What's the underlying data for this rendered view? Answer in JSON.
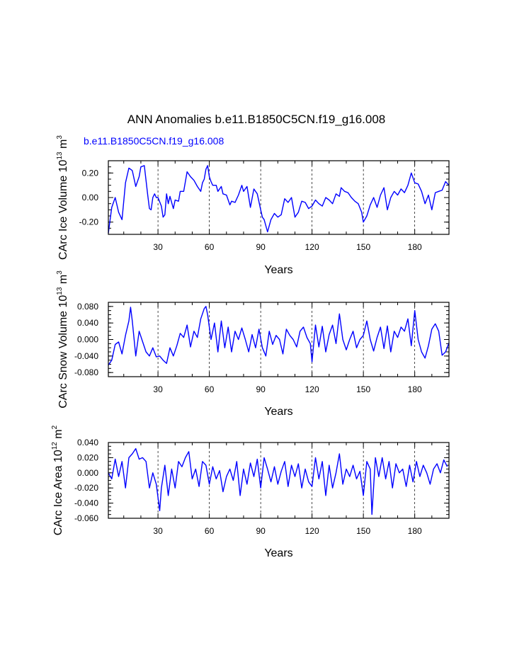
{
  "figure": {
    "title": "ANN Anomalies b.e11.B1850C5CN.f19_g16.008",
    "subtitle": "b.e11.B1850C5CN.f19_g16.008",
    "line_color": "#0000ff"
  },
  "chart_data": [
    {
      "type": "line",
      "xlabel": "Years",
      "ylabel_main": "CArc Ice Volume 10",
      "ylabel_exp": "13",
      "ylabel_unit": " m",
      "ylabel_unit_exp": "3",
      "xlim": [
        1,
        200
      ],
      "ylim": [
        -0.3,
        0.3
      ],
      "xticks": [
        30,
        60,
        90,
        120,
        150,
        180
      ],
      "xtick_labels": [
        "30",
        "60",
        "90",
        "120",
        "150",
        "180"
      ],
      "yticks": [
        -0.2,
        0.0,
        0.2
      ],
      "ytick_labels": [
        "-0.20",
        "0.00",
        "0.20"
      ],
      "vlines": [
        30,
        60,
        90,
        120,
        150,
        180
      ],
      "series": [
        {
          "name": "CArc Ice Volume",
          "x": [
            1,
            3,
            5,
            7,
            9,
            11,
            13,
            14,
            15,
            17,
            19,
            20,
            22,
            23,
            24,
            25,
            26,
            27,
            28,
            29,
            30,
            32,
            33,
            34,
            35,
            36,
            37,
            39,
            40,
            42,
            43,
            45,
            47,
            49,
            51,
            53,
            55,
            56,
            57,
            58,
            59,
            60,
            61,
            62,
            64,
            65,
            67,
            68,
            70,
            72,
            73,
            75,
            77,
            79,
            80,
            82,
            84,
            86,
            88,
            90,
            91,
            92,
            94,
            96,
            98,
            100,
            102,
            104,
            106,
            108,
            110,
            112,
            114,
            116,
            118,
            120,
            122,
            124,
            126,
            128,
            130,
            132,
            134,
            136,
            137,
            139,
            141,
            143,
            145,
            147,
            149,
            150,
            152,
            154,
            156,
            158,
            160,
            162,
            164,
            166,
            168,
            170,
            172,
            174,
            176,
            178,
            180,
            182,
            184,
            186,
            188,
            190,
            192,
            194,
            196,
            198,
            200
          ],
          "values": [
            -0.29,
            -0.08,
            0.0,
            -0.12,
            -0.18,
            0.12,
            0.24,
            0.23,
            0.22,
            0.09,
            0.17,
            0.25,
            0.26,
            0.14,
            0.02,
            -0.09,
            -0.1,
            0.0,
            0.03,
            0.0,
            0.0,
            -0.07,
            -0.16,
            -0.14,
            0.03,
            -0.05,
            0.01,
            -0.09,
            -0.02,
            -0.03,
            0.05,
            0.05,
            0.21,
            0.17,
            0.14,
            0.09,
            0.05,
            0.12,
            0.15,
            0.23,
            0.26,
            0.17,
            0.13,
            0.1,
            0.1,
            0.05,
            0.09,
            0.03,
            0.02,
            -0.06,
            -0.03,
            -0.04,
            0.02,
            0.1,
            0.05,
            0.09,
            -0.08,
            0.07,
            0.03,
            -0.1,
            -0.16,
            -0.18,
            -0.28,
            -0.18,
            -0.13,
            -0.16,
            -0.14,
            -0.01,
            -0.04,
            0.0,
            -0.16,
            -0.12,
            -0.03,
            -0.04,
            -0.09,
            -0.07,
            -0.02,
            -0.05,
            -0.07,
            0.0,
            -0.02,
            -0.05,
            0.03,
            0.01,
            0.08,
            0.05,
            0.04,
            0.0,
            -0.03,
            -0.05,
            -0.12,
            -0.2,
            -0.15,
            -0.06,
            0.0,
            -0.08,
            0.02,
            0.08,
            -0.1,
            0.0,
            0.05,
            0.02,
            0.07,
            0.04,
            0.1,
            0.2,
            0.12,
            0.11,
            0.05,
            -0.05,
            0.02,
            -0.1,
            0.04,
            0.05,
            0.06,
            0.13,
            0.1
          ]
        }
      ]
    },
    {
      "type": "line",
      "xlabel": "Years",
      "ylabel_main": "CArc Snow Volume 10",
      "ylabel_exp": "13",
      "ylabel_unit": " m",
      "ylabel_unit_exp": "3",
      "xlim": [
        1,
        200
      ],
      "ylim": [
        -0.09,
        0.09
      ],
      "xticks": [
        30,
        60,
        90,
        120,
        150,
        180
      ],
      "xtick_labels": [
        "30",
        "60",
        "90",
        "120",
        "150",
        "180"
      ],
      "yticks": [
        -0.08,
        -0.04,
        0.0,
        0.04,
        0.08
      ],
      "ytick_labels": [
        "-0.080",
        "-0.040",
        "0.000",
        "0.040",
        "0.080"
      ],
      "vlines": [
        30,
        60,
        90,
        120,
        150,
        180
      ],
      "series": [
        {
          "name": "CArc Snow Volume",
          "x": [
            1,
            3,
            5,
            7,
            9,
            11,
            13,
            14,
            15,
            17,
            19,
            21,
            23,
            25,
            27,
            29,
            31,
            33,
            35,
            37,
            39,
            41,
            43,
            45,
            47,
            49,
            51,
            53,
            55,
            57,
            58,
            59,
            61,
            63,
            65,
            67,
            69,
            71,
            73,
            75,
            77,
            79,
            81,
            83,
            85,
            87,
            89,
            91,
            93,
            95,
            97,
            99,
            101,
            103,
            105,
            107,
            109,
            111,
            113,
            115,
            117,
            119,
            120,
            122,
            124,
            126,
            128,
            130,
            132,
            134,
            136,
            138,
            140,
            142,
            144,
            146,
            148,
            150,
            152,
            154,
            156,
            158,
            160,
            162,
            164,
            166,
            168,
            170,
            172,
            174,
            176,
            178,
            180,
            182,
            184,
            186,
            188,
            190,
            192,
            194,
            196,
            198,
            200
          ],
          "values": [
            -0.062,
            -0.05,
            -0.012,
            -0.006,
            -0.035,
            0.01,
            0.045,
            0.078,
            0.045,
            -0.04,
            0.02,
            -0.005,
            -0.03,
            -0.04,
            -0.02,
            -0.042,
            -0.04,
            -0.05,
            -0.058,
            -0.02,
            -0.04,
            -0.015,
            0.015,
            0.005,
            0.035,
            -0.018,
            0.02,
            0.005,
            0.05,
            0.075,
            0.08,
            0.06,
            0.0,
            0.04,
            -0.03,
            0.045,
            -0.02,
            0.03,
            -0.03,
            0.02,
            0.0,
            0.028,
            0.0,
            -0.03,
            0.012,
            -0.02,
            0.025,
            -0.02,
            -0.04,
            0.02,
            -0.012,
            0.01,
            0.0,
            -0.035,
            0.025,
            0.01,
            0.0,
            -0.018,
            0.02,
            0.03,
            0.005,
            -0.01,
            -0.054,
            0.035,
            -0.018,
            0.032,
            -0.03,
            0.012,
            0.035,
            -0.01,
            0.062,
            0.0,
            -0.025,
            0.0,
            0.02,
            -0.02,
            0.0,
            0.01,
            0.045,
            0.0,
            -0.028,
            0.005,
            0.03,
            -0.022,
            0.033,
            -0.03,
            0.02,
            0.005,
            0.03,
            0.02,
            0.05,
            -0.015,
            0.07,
            0.0,
            -0.03,
            -0.045,
            -0.015,
            0.025,
            0.038,
            0.02,
            -0.038,
            -0.03,
            -0.008
          ]
        }
      ]
    },
    {
      "type": "line",
      "xlabel": "Years",
      "ylabel_main": "CArc Ice Area 10",
      "ylabel_exp": "12",
      "ylabel_unit": " m",
      "ylabel_unit_exp": "2",
      "xlim": [
        1,
        200
      ],
      "ylim": [
        -0.06,
        0.04
      ],
      "xticks": [
        30,
        60,
        90,
        120,
        150,
        180
      ],
      "xtick_labels": [
        "30",
        "60",
        "90",
        "120",
        "150",
        "180"
      ],
      "yticks": [
        -0.06,
        -0.04,
        -0.02,
        0.0,
        0.02,
        0.04
      ],
      "ytick_labels": [
        "-0.060",
        "-0.040",
        "-0.020",
        "0.000",
        "0.020",
        "0.040"
      ],
      "vlines": [
        30,
        60,
        90,
        120,
        150,
        180
      ],
      "series": [
        {
          "name": "CArc Ice Area",
          "x": [
            1,
            3,
            5,
            7,
            9,
            11,
            13,
            15,
            17,
            19,
            21,
            23,
            25,
            27,
            29,
            31,
            32,
            34,
            36,
            38,
            40,
            42,
            44,
            46,
            48,
            50,
            52,
            54,
            56,
            58,
            60,
            62,
            64,
            66,
            68,
            70,
            72,
            74,
            76,
            78,
            80,
            82,
            84,
            86,
            88,
            90,
            92,
            94,
            96,
            98,
            100,
            102,
            104,
            106,
            108,
            110,
            112,
            114,
            116,
            118,
            120,
            122,
            124,
            126,
            128,
            130,
            132,
            134,
            136,
            138,
            140,
            142,
            144,
            146,
            148,
            150,
            152,
            154,
            155,
            157,
            159,
            161,
            163,
            165,
            167,
            169,
            171,
            173,
            175,
            177,
            179,
            181,
            183,
            185,
            187,
            189,
            191,
            193,
            195,
            197,
            199
          ],
          "values": [
            0.0,
            -0.008,
            0.018,
            -0.005,
            0.015,
            -0.02,
            0.02,
            0.025,
            0.032,
            0.018,
            0.02,
            0.015,
            -0.02,
            0.0,
            -0.015,
            -0.05,
            -0.02,
            0.01,
            -0.03,
            0.005,
            -0.02,
            0.015,
            0.008,
            0.02,
            0.028,
            -0.008,
            0.005,
            -0.018,
            0.015,
            0.01,
            -0.015,
            0.008,
            -0.008,
            0.003,
            -0.025,
            -0.005,
            0.005,
            -0.01,
            0.015,
            -0.03,
            0.005,
            -0.015,
            0.013,
            -0.005,
            0.018,
            -0.02,
            0.02,
            0.005,
            -0.012,
            0.008,
            -0.015,
            0.002,
            0.015,
            -0.018,
            0.01,
            -0.005,
            0.012,
            -0.02,
            0.005,
            -0.012,
            -0.018,
            0.02,
            -0.008,
            0.015,
            -0.03,
            0.01,
            -0.02,
            0.0,
            0.025,
            -0.015,
            0.005,
            -0.005,
            0.01,
            -0.008,
            0.002,
            -0.03,
            0.015,
            0.005,
            -0.055,
            0.02,
            -0.005,
            0.02,
            -0.008,
            0.015,
            -0.02,
            0.012,
            0.0,
            0.005,
            -0.018,
            0.01,
            -0.012,
            0.015,
            -0.005,
            0.01,
            0.0,
            -0.015,
            0.005,
            0.012,
            0.0,
            0.017,
            0.008
          ]
        }
      ]
    }
  ]
}
